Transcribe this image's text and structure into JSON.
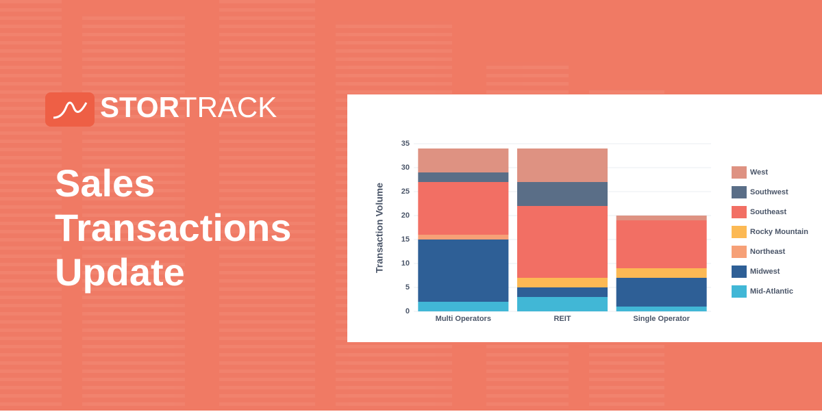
{
  "header": {
    "logo_bold": "STOR",
    "logo_light": "TRACK",
    "title_lines": [
      "Sales",
      "Transactions",
      "Update"
    ]
  },
  "chart_data": {
    "type": "stacked-bar",
    "y_label": "Transaction Volume",
    "categories": [
      "Multi Operators",
      "REIT",
      "Single Operator"
    ],
    "series": [
      {
        "name": "Mid-Atlantic",
        "color": "#41b7d6",
        "values": [
          2,
          3,
          1
        ]
      },
      {
        "name": "Midwest",
        "color": "#2e5f96",
        "values": [
          13,
          2,
          6
        ]
      },
      {
        "name": "Northeast",
        "color": "#f6a077",
        "values": [
          1,
          0,
          0
        ]
      },
      {
        "name": "Rocky Mountain",
        "color": "#fcb954",
        "values": [
          0,
          2,
          2
        ]
      },
      {
        "name": "Southeast",
        "color": "#f26f64",
        "values": [
          11,
          15,
          10
        ]
      },
      {
        "name": "Southwest",
        "color": "#5a6e87",
        "values": [
          2,
          5,
          0
        ]
      },
      {
        "name": "West",
        "color": "#de9282",
        "values": [
          5,
          7,
          1
        ]
      }
    ],
    "ylim": [
      0,
      35
    ],
    "yticks": [
      0,
      5,
      10,
      15,
      20,
      25,
      30,
      35
    ],
    "grid": true,
    "legend": "right"
  }
}
